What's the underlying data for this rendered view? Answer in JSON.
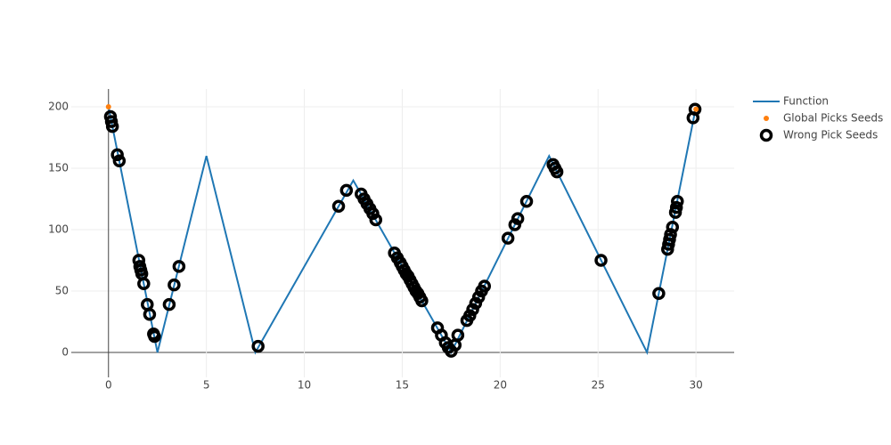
{
  "chart_data": {
    "type": "scatter",
    "xlim": [
      -1.9,
      31.95
    ],
    "ylim": [
      -20.3,
      214.5
    ],
    "xticks": [
      0,
      5,
      10,
      15,
      20,
      25,
      30
    ],
    "yticks": [
      0,
      50,
      100,
      150,
      200
    ],
    "grid": true,
    "legend": "right",
    "series": [
      {
        "name": "Function",
        "type": "line",
        "color": "#1f77b4",
        "x": [
          0,
          2.5,
          5,
          7.5,
          12.5,
          17.5,
          22.5,
          27.5,
          30
        ],
        "values": [
          200,
          0,
          160,
          0,
          140,
          0,
          160,
          0,
          200
        ]
      },
      {
        "name": "Global Picks Seeds",
        "type": "scatter",
        "color": "#ff7f0e",
        "x": [
          0,
          30
        ],
        "values": [
          200,
          198
        ]
      },
      {
        "name": "Wrong Pick Seeds",
        "type": "ring",
        "color": "#000000",
        "x": [
          0.1,
          0.15,
          0.2,
          0.45,
          0.55,
          1.55,
          1.6,
          1.65,
          1.7,
          1.8,
          1.98,
          2.1,
          2.3,
          2.35,
          3.1,
          3.35,
          3.6,
          7.64,
          11.75,
          12.15,
          12.9,
          13.05,
          13.2,
          13.35,
          13.5,
          13.65,
          14.6,
          14.75,
          14.9,
          15.0,
          15.1,
          15.2,
          15.3,
          15.4,
          15.5,
          15.6,
          15.7,
          15.8,
          15.9,
          16.0,
          16.8,
          17.0,
          17.2,
          17.35,
          17.5,
          17.7,
          17.84,
          18.3,
          18.45,
          18.6,
          18.75,
          18.9,
          19.05,
          19.2,
          20.4,
          20.75,
          20.9,
          21.35,
          22.7,
          22.8,
          22.9,
          25.15,
          28.1,
          28.55,
          28.6,
          28.65,
          28.7,
          28.8,
          28.95,
          29.0,
          29.05,
          29.85,
          29.95
        ],
        "values": [
          192,
          188,
          184,
          161,
          156,
          75,
          70,
          67,
          64,
          56,
          39,
          31,
          15,
          13,
          39,
          55,
          70,
          5,
          119,
          132,
          129,
          125,
          121,
          117,
          113,
          108,
          81,
          77,
          73,
          70,
          67,
          64,
          62,
          59,
          56,
          53,
          50,
          48,
          45,
          42,
          20,
          14,
          8,
          4,
          1,
          6,
          14,
          26,
          30,
          35,
          40,
          45,
          50,
          54,
          93,
          104,
          109,
          123,
          153,
          150,
          147,
          75,
          48,
          84,
          88,
          92,
          96,
          102,
          114,
          118,
          123,
          191,
          198
        ]
      }
    ]
  }
}
